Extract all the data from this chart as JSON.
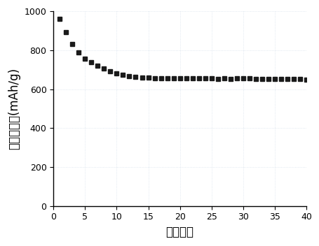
{
  "x": [
    1,
    2,
    3,
    4,
    5,
    6,
    7,
    8,
    9,
    10,
    11,
    12,
    13,
    14,
    15,
    16,
    17,
    18,
    19,
    20,
    21,
    22,
    23,
    24,
    25,
    26,
    27,
    28,
    29,
    30,
    31,
    32,
    33,
    34,
    35,
    36,
    37,
    38,
    39,
    40
  ],
  "y": [
    960,
    893,
    830,
    790,
    758,
    740,
    720,
    705,
    693,
    682,
    673,
    668,
    663,
    660,
    658,
    657,
    656,
    657,
    655,
    655,
    654,
    655,
    654,
    654,
    654,
    653,
    654,
    653,
    654,
    654,
    654,
    653,
    653,
    652,
    652,
    651,
    652,
    651,
    651,
    650
  ],
  "xlabel": "循环次数",
  "ylabel": "放电比容量(mAh/g)",
  "xlim": [
    0,
    40
  ],
  "ylim": [
    0,
    1000
  ],
  "xticks": [
    0,
    5,
    10,
    15,
    20,
    25,
    30,
    35,
    40
  ],
  "yticks": [
    0,
    200,
    400,
    600,
    800,
    1000
  ],
  "marker": "s",
  "marker_color": "#1a1a1a",
  "marker_size": 4.5,
  "background_color": "#ffffff",
  "grid_color": "#b0c4d8",
  "grid_alpha": 0.5,
  "tick_fontsize": 9,
  "label_fontsize": 12
}
